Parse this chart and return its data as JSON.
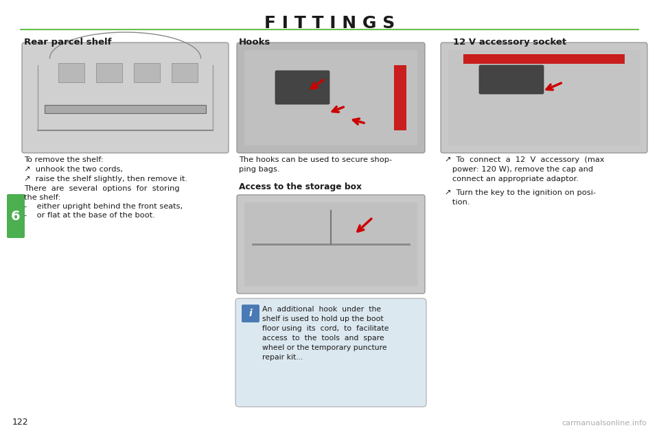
{
  "title": "F I T T I N G S",
  "title_color": "#1a1a1a",
  "title_fontsize": 18,
  "green_line_color": "#6abf4b",
  "background_color": "#ffffff",
  "page_number": "122",
  "watermark": "carmanualsonline.info",
  "section_number": "6",
  "section_bg": "#4caf50",
  "col1_header": "Rear parcel shelf",
  "col2_header": "Hooks",
  "col3_header": "12 V accessory socket",
  "col1_lines": [
    "To remove the shelf:",
    "↗  unhook the two cords,",
    "↗  raise the shelf slightly, then remove it.",
    "There  are  several  options  for  storing",
    "the shelf:",
    "-    either upright behind the front seats,",
    "-    or flat at the base of the boot."
  ],
  "col2_text1": "The hooks can be used to secure shop-",
  "col2_text2": "ping bags.",
  "col2_subheader": "Access to the storage box",
  "col2_info_text": "An  additional  hook  under  the\nshelf is used to hold up the boot\nfloor using  its  cord,  to  facilitate\naccess  to  the  tools  and  spare\nwheel or the temporary puncture\nrepair kit...",
  "col3_bullet1a": "↗  To  connect  a  12  V  accessory  (max",
  "col3_bullet1b": "   power: 120 W), remove the cap and",
  "col3_bullet1c": "   connect an appropriate adaptor.",
  "col3_bullet2a": "↗  Turn the key to the ignition on posi-",
  "col3_bullet2b": "   tion.",
  "arrow_color": "#cc0000",
  "red_stripe_color": "#cc0000",
  "info_box_bg": "#dce8f0",
  "info_icon_bg": "#4a7ab5"
}
